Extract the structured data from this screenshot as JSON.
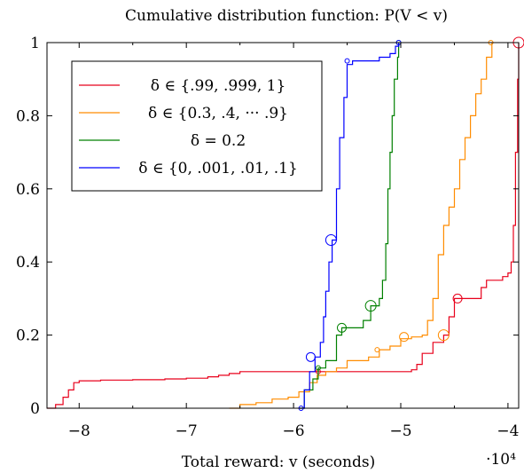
{
  "chart_data": {
    "type": "line",
    "step": true,
    "title": "Cumulative distribution function: P(V < v)",
    "xlabel": "Total reward: v (seconds)",
    "ylabel": "",
    "x_multiplier_label": "·10⁴",
    "xlim": [
      -8.3,
      -3.9
    ],
    "ylim": [
      0,
      1
    ],
    "x_ticks": [
      -8,
      -7,
      -6,
      -5,
      -4
    ],
    "x_tick_labels": [
      "−8",
      "−7",
      "−6",
      "−5",
      "−4"
    ],
    "y_ticks": [
      0,
      0.2,
      0.4,
      0.6,
      0.8,
      1
    ],
    "y_tick_labels": [
      "0",
      "0.2",
      "0.4",
      "0.6",
      "0.8",
      "1"
    ],
    "grid": false,
    "legend_position": "top-left",
    "series": [
      {
        "name": "δ ∈ {.99, .999, 1}",
        "color": "#e8001b",
        "points": [
          [
            -8.3,
            0
          ],
          [
            -8.22,
            0.01
          ],
          [
            -8.15,
            0.03
          ],
          [
            -8.1,
            0.05
          ],
          [
            -8.05,
            0.07
          ],
          [
            -8.0,
            0.075
          ],
          [
            -7.8,
            0.077
          ],
          [
            -7.5,
            0.078
          ],
          [
            -7.2,
            0.08
          ],
          [
            -7.0,
            0.082
          ],
          [
            -6.8,
            0.086
          ],
          [
            -6.7,
            0.09
          ],
          [
            -6.6,
            0.095
          ],
          [
            -6.5,
            0.1
          ],
          [
            -6.2,
            0.1
          ],
          [
            -6.0,
            0.1
          ],
          [
            -5.8,
            0.1
          ],
          [
            -5.6,
            0.1
          ],
          [
            -5.4,
            0.1
          ],
          [
            -5.2,
            0.1
          ],
          [
            -5.0,
            0.1
          ],
          [
            -4.9,
            0.105
          ],
          [
            -4.85,
            0.12
          ],
          [
            -4.8,
            0.15
          ],
          [
            -4.7,
            0.18
          ],
          [
            -4.6,
            0.2
          ],
          [
            -4.55,
            0.25
          ],
          [
            -4.5,
            0.3
          ],
          [
            -4.4,
            0.3
          ],
          [
            -4.3,
            0.3
          ],
          [
            -4.25,
            0.33
          ],
          [
            -4.2,
            0.35
          ],
          [
            -4.1,
            0.35
          ],
          [
            -4.05,
            0.36
          ],
          [
            -4.0,
            0.37
          ],
          [
            -3.97,
            0.4
          ],
          [
            -3.95,
            0.5
          ],
          [
            -3.93,
            0.7
          ],
          [
            -3.91,
            0.9
          ],
          [
            -3.9,
            1.0
          ]
        ],
        "markers": [
          [
            -5.77,
            0.1
          ],
          [
            -4.47,
            0.3
          ],
          [
            -3.9,
            1.0
          ]
        ]
      },
      {
        "name": "δ ∈ {0.3, .4, ··· .9}",
        "color": "#ff8c00",
        "points": [
          [
            -6.6,
            0
          ],
          [
            -6.5,
            0.01
          ],
          [
            -6.35,
            0.015
          ],
          [
            -6.2,
            0.025
          ],
          [
            -6.05,
            0.03
          ],
          [
            -5.95,
            0.045
          ],
          [
            -5.85,
            0.07
          ],
          [
            -5.78,
            0.09
          ],
          [
            -5.7,
            0.1
          ],
          [
            -5.6,
            0.11
          ],
          [
            -5.5,
            0.13
          ],
          [
            -5.3,
            0.14
          ],
          [
            -5.2,
            0.16
          ],
          [
            -5.1,
            0.17
          ],
          [
            -5.0,
            0.19
          ],
          [
            -4.9,
            0.195
          ],
          [
            -4.8,
            0.2
          ],
          [
            -4.75,
            0.24
          ],
          [
            -4.7,
            0.3
          ],
          [
            -4.65,
            0.42
          ],
          [
            -4.6,
            0.5
          ],
          [
            -4.55,
            0.55
          ],
          [
            -4.5,
            0.6
          ],
          [
            -4.45,
            0.68
          ],
          [
            -4.4,
            0.74
          ],
          [
            -4.35,
            0.8
          ],
          [
            -4.3,
            0.86
          ],
          [
            -4.25,
            0.9
          ],
          [
            -4.2,
            0.96
          ],
          [
            -4.15,
            1.0
          ]
        ],
        "markers": [
          [
            -5.22,
            0.16
          ],
          [
            -4.97,
            0.195
          ],
          [
            -4.6,
            0.2
          ],
          [
            -4.16,
            1.0
          ]
        ]
      },
      {
        "name": "δ = 0.2",
        "color": "#008000",
        "points": [
          [
            -5.95,
            0
          ],
          [
            -5.9,
            0.05
          ],
          [
            -5.82,
            0.08
          ],
          [
            -5.77,
            0.11
          ],
          [
            -5.7,
            0.13
          ],
          [
            -5.6,
            0.2
          ],
          [
            -5.55,
            0.22
          ],
          [
            -5.45,
            0.22
          ],
          [
            -5.35,
            0.24
          ],
          [
            -5.28,
            0.28
          ],
          [
            -5.2,
            0.3
          ],
          [
            -5.17,
            0.35
          ],
          [
            -5.14,
            0.45
          ],
          [
            -5.12,
            0.6
          ],
          [
            -5.1,
            0.7
          ],
          [
            -5.08,
            0.8
          ],
          [
            -5.06,
            0.9
          ],
          [
            -5.03,
            0.96
          ],
          [
            -5.02,
            1.0
          ]
        ],
        "markers": [
          [
            -5.77,
            0.11
          ],
          [
            -5.55,
            0.22
          ],
          [
            -5.28,
            0.28
          ],
          [
            -5.02,
            1.0
          ]
        ]
      },
      {
        "name": "δ ∈ {0, .001, .01, .1}",
        "color": "#0000ff",
        "points": [
          [
            -5.95,
            0
          ],
          [
            -5.9,
            0.05
          ],
          [
            -5.85,
            0.1
          ],
          [
            -5.8,
            0.14
          ],
          [
            -5.75,
            0.18
          ],
          [
            -5.72,
            0.25
          ],
          [
            -5.7,
            0.32
          ],
          [
            -5.67,
            0.4
          ],
          [
            -5.64,
            0.46
          ],
          [
            -5.6,
            0.6
          ],
          [
            -5.57,
            0.74
          ],
          [
            -5.53,
            0.85
          ],
          [
            -5.5,
            0.94
          ],
          [
            -5.45,
            0.95
          ],
          [
            -5.3,
            0.95
          ],
          [
            -5.2,
            0.96
          ],
          [
            -5.1,
            0.97
          ],
          [
            -5.05,
            0.99
          ],
          [
            -5.02,
            1.0
          ]
        ],
        "markers": [
          [
            -5.93,
            0.0
          ],
          [
            -5.84,
            0.14
          ],
          [
            -5.65,
            0.46
          ],
          [
            -5.5,
            0.95
          ],
          [
            -5.02,
            1.0
          ]
        ]
      }
    ]
  }
}
